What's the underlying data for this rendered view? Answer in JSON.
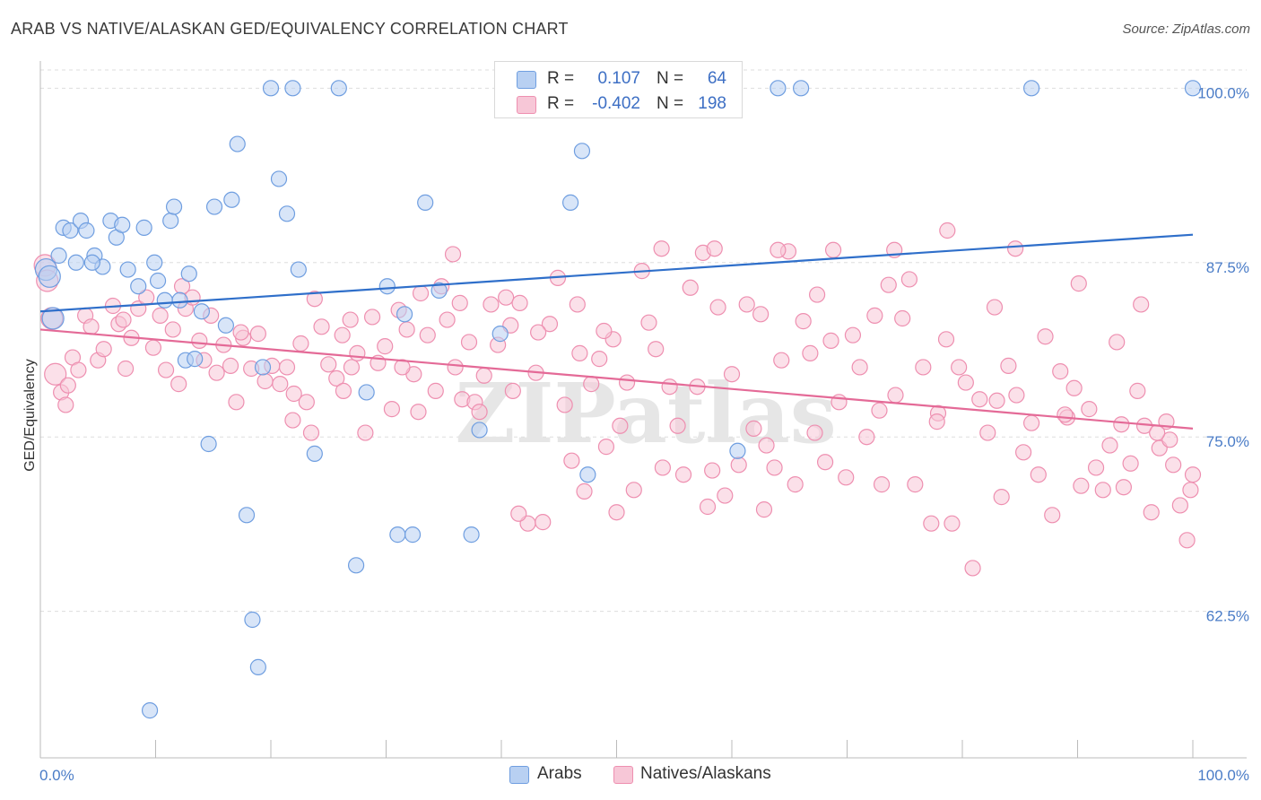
{
  "title": "ARAB VS NATIVE/ALASKAN GED/EQUIVALENCY CORRELATION CHART",
  "source": "Source: ZipAtlas.com",
  "watermark": "ZIPatlas",
  "colors": {
    "series_blue": "#6f9ee0",
    "series_blue_fill": "#b8d0f2",
    "series_pink": "#ee8fb0",
    "series_pink_fill": "#f7c7d7",
    "blue_line": "#2f6fca",
    "pink_line": "#e46a97",
    "tick_text": "#4a7cc7",
    "grid": "#dddddd"
  },
  "stats": [
    {
      "swatch_color": "#b8d0f2",
      "r_label": "R =",
      "r_value": "0.107",
      "n_label": "N =",
      "n_value": "64"
    },
    {
      "swatch_color": "#f7c7d7",
      "r_label": "R =",
      "r_value": "-0.402",
      "n_label": "N =",
      "n_value": "198"
    }
  ],
  "legend": [
    {
      "label": "Arabs",
      "color": "#b8d0f2"
    },
    {
      "label": "Natives/Alaskans",
      "color": "#f7c7d7"
    }
  ],
  "chart_data": {
    "type": "scatter",
    "title": "ARAB VS NATIVE/ALASKAN GED/EQUIVALENCY CORRELATION CHART",
    "xlabel": "",
    "ylabel": "GED/Equivalency",
    "xlim": [
      0,
      100
    ],
    "ylim": [
      52,
      101.5
    ],
    "x_tick_labels": [
      "0.0%",
      "100.0%"
    ],
    "y_ticks": [
      62.5,
      75.0,
      87.5,
      100.0
    ],
    "y_tick_labels": [
      "62.5%",
      "75.0%",
      "87.5%",
      "100.0%"
    ],
    "grid": "horizontal dashed",
    "legend_position": "bottom-center",
    "series": [
      {
        "name": "Arabs",
        "color": "#6f9ee0",
        "trend": {
          "x": [
            0,
            100
          ],
          "y": [
            84.0,
            89.5
          ]
        },
        "points": [
          [
            0.5,
            87.0
          ],
          [
            0.8,
            86.5
          ],
          [
            1.1,
            83.5
          ],
          [
            1.6,
            88.0
          ],
          [
            2.0,
            90.0
          ],
          [
            2.6,
            89.8
          ],
          [
            3.1,
            87.5
          ],
          [
            3.5,
            90.5
          ],
          [
            4.0,
            89.8
          ],
          [
            4.7,
            88.0
          ],
          [
            5.4,
            87.2
          ],
          [
            6.1,
            90.5
          ],
          [
            6.6,
            89.3
          ],
          [
            7.1,
            90.2
          ],
          [
            7.6,
            87.0
          ],
          [
            8.5,
            85.8
          ],
          [
            9.0,
            90.0
          ],
          [
            9.9,
            87.5
          ],
          [
            10.2,
            86.2
          ],
          [
            10.8,
            84.8
          ],
          [
            11.3,
            90.5
          ],
          [
            11.6,
            91.5
          ],
          [
            12.1,
            84.8
          ],
          [
            12.6,
            80.5
          ],
          [
            12.9,
            86.7
          ],
          [
            13.4,
            80.6
          ],
          [
            14.0,
            84.0
          ],
          [
            14.6,
            74.5
          ],
          [
            15.1,
            91.5
          ],
          [
            16.1,
            83.0
          ],
          [
            16.6,
            92.0
          ],
          [
            17.1,
            96.0
          ],
          [
            17.9,
            69.4
          ],
          [
            18.4,
            61.9
          ],
          [
            18.9,
            58.5
          ],
          [
            19.3,
            80.0
          ],
          [
            20.0,
            100.0
          ],
          [
            20.7,
            93.5
          ],
          [
            21.4,
            91.0
          ],
          [
            21.9,
            100.0
          ],
          [
            22.4,
            87.0
          ],
          [
            23.8,
            73.8
          ],
          [
            25.9,
            100.0
          ],
          [
            27.4,
            65.8
          ],
          [
            28.3,
            78.2
          ],
          [
            30.1,
            85.8
          ],
          [
            31.0,
            68.0
          ],
          [
            31.6,
            83.8
          ],
          [
            32.3,
            68.0
          ],
          [
            33.4,
            91.8
          ],
          [
            34.6,
            85.5
          ],
          [
            37.4,
            68.0
          ],
          [
            38.1,
            75.5
          ],
          [
            39.9,
            82.4
          ],
          [
            46.0,
            91.8
          ],
          [
            47.0,
            95.5
          ],
          [
            47.5,
            72.3
          ],
          [
            60.5,
            74.0
          ],
          [
            66.0,
            100.0
          ],
          [
            64.0,
            100.0
          ],
          [
            86.0,
            100.0
          ],
          [
            100.0,
            100.0
          ],
          [
            9.5,
            55.4
          ],
          [
            4.5,
            87.5
          ]
        ]
      },
      {
        "name": "Natives/Alaskans",
        "color": "#ee8fb0",
        "trend": {
          "x": [
            0,
            100
          ],
          "y": [
            82.7,
            75.6
          ]
        },
        "points": [
          [
            0.4,
            87.3
          ],
          [
            0.6,
            86.2
          ],
          [
            1.0,
            83.5
          ],
          [
            1.3,
            79.5
          ],
          [
            1.8,
            78.2
          ],
          [
            2.2,
            77.3
          ],
          [
            2.8,
            80.7
          ],
          [
            3.3,
            79.8
          ],
          [
            3.9,
            83.7
          ],
          [
            4.4,
            82.9
          ],
          [
            5.0,
            80.5
          ],
          [
            5.5,
            81.3
          ],
          [
            6.3,
            84.4
          ],
          [
            6.8,
            83.1
          ],
          [
            7.4,
            79.9
          ],
          [
            7.9,
            82.1
          ],
          [
            8.5,
            84.2
          ],
          [
            9.2,
            85.0
          ],
          [
            9.8,
            81.4
          ],
          [
            10.4,
            83.7
          ],
          [
            10.9,
            79.8
          ],
          [
            11.5,
            82.7
          ],
          [
            12.0,
            78.8
          ],
          [
            12.6,
            84.2
          ],
          [
            13.2,
            85.0
          ],
          [
            13.8,
            81.9
          ],
          [
            14.2,
            80.5
          ],
          [
            14.8,
            83.7
          ],
          [
            15.3,
            79.6
          ],
          [
            15.9,
            81.6
          ],
          [
            16.5,
            80.1
          ],
          [
            17.0,
            77.5
          ],
          [
            17.6,
            82.1
          ],
          [
            18.3,
            79.9
          ],
          [
            18.9,
            82.4
          ],
          [
            19.5,
            79.0
          ],
          [
            20.1,
            80.1
          ],
          [
            20.8,
            78.8
          ],
          [
            21.4,
            80.0
          ],
          [
            21.9,
            76.2
          ],
          [
            22.6,
            81.7
          ],
          [
            23.1,
            77.5
          ],
          [
            23.8,
            84.9
          ],
          [
            24.4,
            82.9
          ],
          [
            25.0,
            80.2
          ],
          [
            25.7,
            79.2
          ],
          [
            26.3,
            78.3
          ],
          [
            26.9,
            83.4
          ],
          [
            27.5,
            81.0
          ],
          [
            28.2,
            75.3
          ],
          [
            28.8,
            83.6
          ],
          [
            29.3,
            80.3
          ],
          [
            29.9,
            81.5
          ],
          [
            30.5,
            77.0
          ],
          [
            31.1,
            84.1
          ],
          [
            31.8,
            82.7
          ],
          [
            32.4,
            79.5
          ],
          [
            33.0,
            85.3
          ],
          [
            33.6,
            82.3
          ],
          [
            34.3,
            78.3
          ],
          [
            34.8,
            85.8
          ],
          [
            35.3,
            83.4
          ],
          [
            36.0,
            80.0
          ],
          [
            36.6,
            77.7
          ],
          [
            37.2,
            81.8
          ],
          [
            37.7,
            77.5
          ],
          [
            38.5,
            79.4
          ],
          [
            39.1,
            84.5
          ],
          [
            39.7,
            81.6
          ],
          [
            40.4,
            85.0
          ],
          [
            41.0,
            78.3
          ],
          [
            41.6,
            84.6
          ],
          [
            42.3,
            68.8
          ],
          [
            43.0,
            79.6
          ],
          [
            43.6,
            68.9
          ],
          [
            44.2,
            83.1
          ],
          [
            44.9,
            86.4
          ],
          [
            45.5,
            77.3
          ],
          [
            46.1,
            73.3
          ],
          [
            46.6,
            84.5
          ],
          [
            47.2,
            71.1
          ],
          [
            47.8,
            78.8
          ],
          [
            48.5,
            80.6
          ],
          [
            49.1,
            74.3
          ],
          [
            49.7,
            82.0
          ],
          [
            50.3,
            75.8
          ],
          [
            50.9,
            78.9
          ],
          [
            51.5,
            71.2
          ],
          [
            52.2,
            86.9
          ],
          [
            52.8,
            83.2
          ],
          [
            53.4,
            81.3
          ],
          [
            54.0,
            72.8
          ],
          [
            54.6,
            78.6
          ],
          [
            55.3,
            75.8
          ],
          [
            55.8,
            72.3
          ],
          [
            56.4,
            85.7
          ],
          [
            57.0,
            78.6
          ],
          [
            57.5,
            88.2
          ],
          [
            58.3,
            72.6
          ],
          [
            58.8,
            84.3
          ],
          [
            59.4,
            70.8
          ],
          [
            60.0,
            79.5
          ],
          [
            60.6,
            73.0
          ],
          [
            61.3,
            84.5
          ],
          [
            61.9,
            75.6
          ],
          [
            62.5,
            83.8
          ],
          [
            63.0,
            74.4
          ],
          [
            63.7,
            72.8
          ],
          [
            64.3,
            80.5
          ],
          [
            64.9,
            88.3
          ],
          [
            65.5,
            71.6
          ],
          [
            66.2,
            83.3
          ],
          [
            66.8,
            81.0
          ],
          [
            67.4,
            85.2
          ],
          [
            68.1,
            73.2
          ],
          [
            68.6,
            81.9
          ],
          [
            69.3,
            77.5
          ],
          [
            69.9,
            72.1
          ],
          [
            70.5,
            82.3
          ],
          [
            71.1,
            80.0
          ],
          [
            71.7,
            75.0
          ],
          [
            72.4,
            83.7
          ],
          [
            73.0,
            71.6
          ],
          [
            73.6,
            85.9
          ],
          [
            74.2,
            78.0
          ],
          [
            74.8,
            83.5
          ],
          [
            75.4,
            86.3
          ],
          [
            75.9,
            71.6
          ],
          [
            76.6,
            80.0
          ],
          [
            77.3,
            68.8
          ],
          [
            77.9,
            76.7
          ],
          [
            78.6,
            82.0
          ],
          [
            79.1,
            68.8
          ],
          [
            79.7,
            80.0
          ],
          [
            80.3,
            78.9
          ],
          [
            80.9,
            65.6
          ],
          [
            81.5,
            77.7
          ],
          [
            82.2,
            75.3
          ],
          [
            82.8,
            84.3
          ],
          [
            83.4,
            70.7
          ],
          [
            84.0,
            80.1
          ],
          [
            84.7,
            78.0
          ],
          [
            85.3,
            73.9
          ],
          [
            86.0,
            76.0
          ],
          [
            86.6,
            72.3
          ],
          [
            87.2,
            82.2
          ],
          [
            87.8,
            69.4
          ],
          [
            88.5,
            79.7
          ],
          [
            89.1,
            76.4
          ],
          [
            89.7,
            78.5
          ],
          [
            90.3,
            71.5
          ],
          [
            91.0,
            77.0
          ],
          [
            91.6,
            72.8
          ],
          [
            92.2,
            71.2
          ],
          [
            92.8,
            74.4
          ],
          [
            93.4,
            81.8
          ],
          [
            94.0,
            71.4
          ],
          [
            94.6,
            73.1
          ],
          [
            95.2,
            78.3
          ],
          [
            95.8,
            75.8
          ],
          [
            96.4,
            69.6
          ],
          [
            97.1,
            74.2
          ],
          [
            97.7,
            76.1
          ],
          [
            98.3,
            73.0
          ],
          [
            98.9,
            70.1
          ],
          [
            99.5,
            67.6
          ],
          [
            100.0,
            72.3
          ],
          [
            99.8,
            71.2
          ],
          [
            35.8,
            88.1
          ],
          [
            40.8,
            83.0
          ],
          [
            46.8,
            81.0
          ],
          [
            53.9,
            88.5
          ],
          [
            58.5,
            88.5
          ],
          [
            64.0,
            88.4
          ],
          [
            68.8,
            88.4
          ],
          [
            74.1,
            88.4
          ],
          [
            78.7,
            89.8
          ],
          [
            84.6,
            88.5
          ],
          [
            90.1,
            86.0
          ],
          [
            95.5,
            84.5
          ],
          [
            23.5,
            75.3
          ],
          [
            26.2,
            82.3
          ],
          [
            31.4,
            80.0
          ],
          [
            36.4,
            84.6
          ],
          [
            41.5,
            69.5
          ],
          [
            50.0,
            69.6
          ],
          [
            57.9,
            70.0
          ],
          [
            62.8,
            69.8
          ],
          [
            67.2,
            75.3
          ],
          [
            72.8,
            76.9
          ],
          [
            77.8,
            76.1
          ],
          [
            83.0,
            77.6
          ],
          [
            88.9,
            76.6
          ],
          [
            93.8,
            75.9
          ],
          [
            98.0,
            74.8
          ],
          [
            96.9,
            75.3
          ],
          [
            2.4,
            78.7
          ],
          [
            7.2,
            83.4
          ],
          [
            12.3,
            85.8
          ],
          [
            17.4,
            82.5
          ],
          [
            22.0,
            78.1
          ],
          [
            27.0,
            80.0
          ],
          [
            32.8,
            76.8
          ],
          [
            38.1,
            76.8
          ],
          [
            43.2,
            82.5
          ],
          [
            48.9,
            82.6
          ]
        ]
      }
    ]
  }
}
